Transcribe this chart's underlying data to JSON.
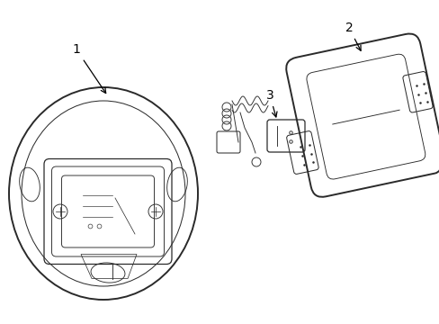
{
  "bg_color": "#ffffff",
  "line_color": "#2a2a2a",
  "lw_outer": 1.4,
  "lw_main": 0.9,
  "lw_detail": 0.65,
  "figw": 4.89,
  "figh": 3.6,
  "dpi": 100,
  "label1": "1",
  "label2": "2",
  "label3": "3",
  "font_size": 10,
  "arrow_lw": 0.9
}
